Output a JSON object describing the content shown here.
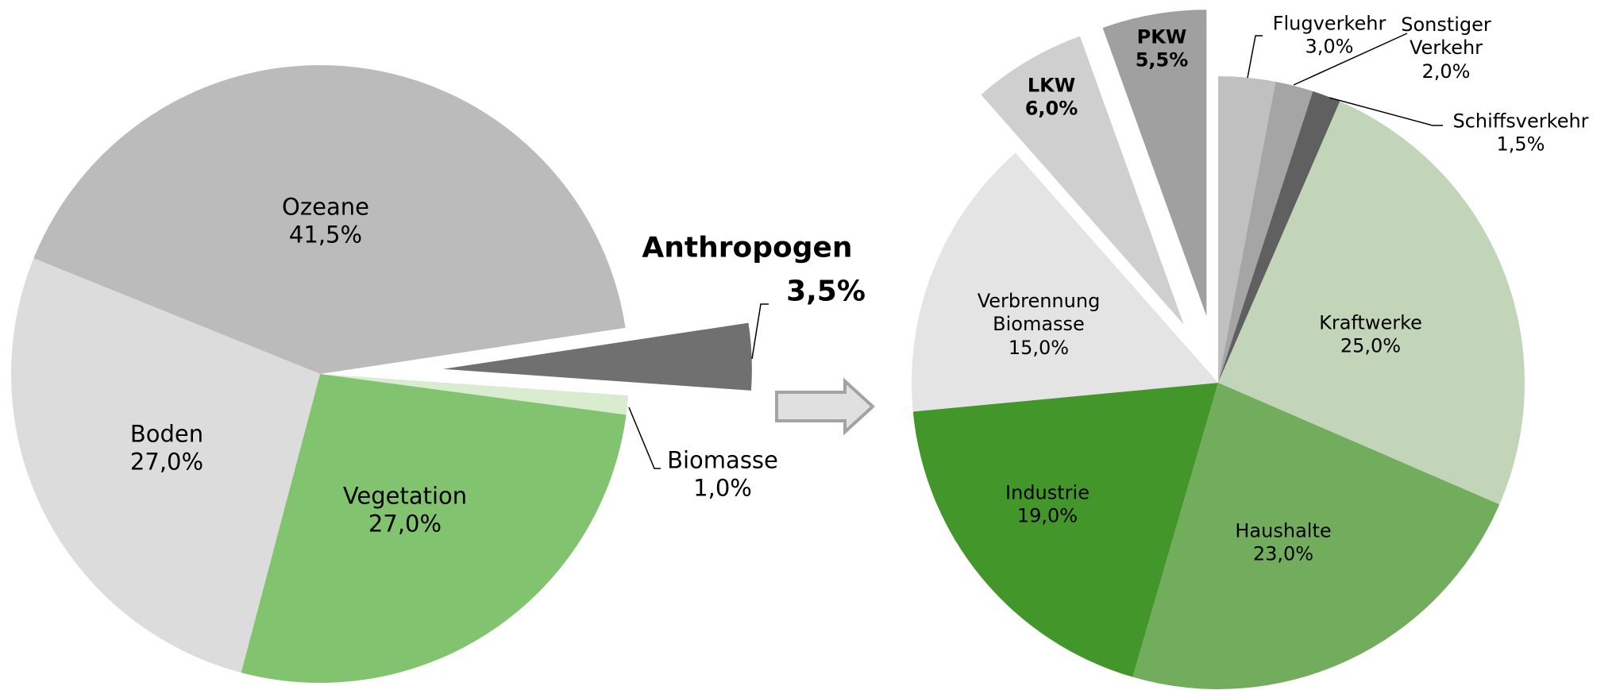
{
  "chart_data": [
    {
      "type": "pie",
      "categories": [
        "Ozeane",
        "Anthropogen",
        "Biomasse",
        "Vegetation",
        "Boden"
      ],
      "values": [
        41.5,
        3.5,
        1.0,
        27.0,
        27.0
      ],
      "value_labels": [
        "41,5%",
        "3,5%",
        "1,0%",
        "27,0%",
        "27,0%"
      ],
      "colors": [
        "#bbbbbb",
        "#707070",
        "#d9ecd0",
        "#82c36f",
        "#dcdcdc"
      ]
    },
    {
      "type": "pie",
      "categories": [
        "Flugverkehr",
        "Sonstiger\nVerkehr",
        "Schiffsverkehr",
        "Kraftwerke",
        "Haushalte",
        "Industrie",
        "Verbrennung\nBiomasse",
        "LKW",
        "PKW"
      ],
      "values": [
        3.0,
        2.0,
        1.5,
        25.0,
        23.0,
        19.0,
        15.0,
        6.0,
        5.5
      ],
      "value_labels": [
        "3,0%",
        "2,0%",
        "1,5%",
        "25,0%",
        "23,0%",
        "19,0%",
        "15,0%",
        "6,0%",
        "5,5%"
      ],
      "colors": [
        "#c0c0c0",
        "#a5a5a5",
        "#606060",
        "#c2d5b8",
        "#72ac5d",
        "#43962a",
        "#e4e4e4",
        "#cfcfcf",
        "#a0a0a0"
      ]
    }
  ]
}
